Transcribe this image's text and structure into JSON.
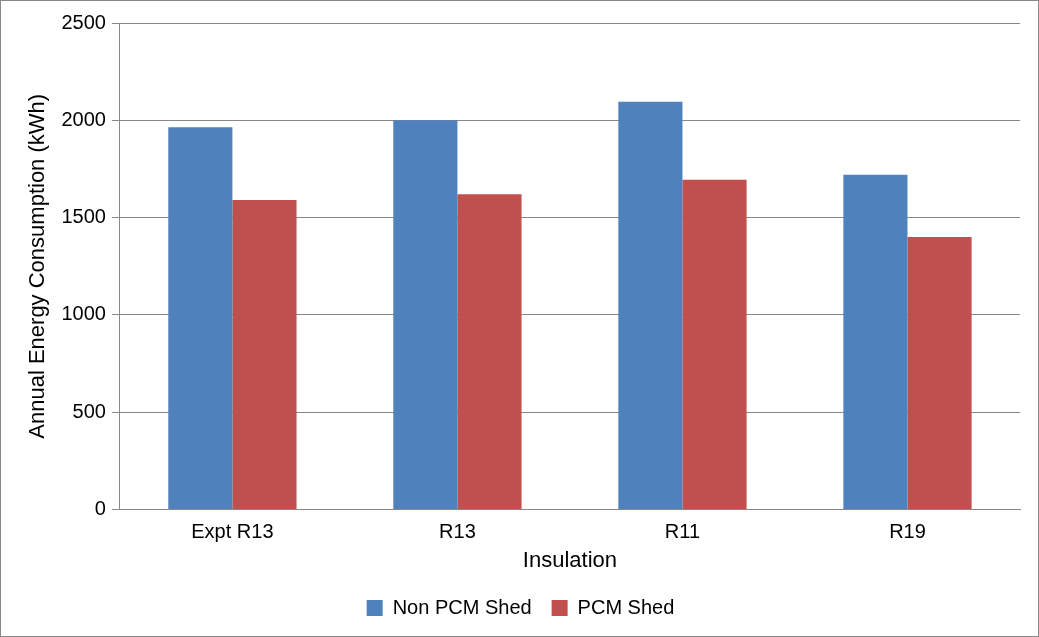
{
  "chart_data": {
    "type": "bar",
    "xlabel": "Insulation",
    "ylabel": "Annual Energy Consumption (kWh)",
    "categories": [
      "Expt R13",
      "R13",
      "R11",
      "R19"
    ],
    "series": [
      {
        "name": "Non PCM Shed",
        "color": "#4f81bd",
        "values": [
          1965,
          2000,
          2095,
          1720
        ]
      },
      {
        "name": "PCM Shed",
        "color": "#c0504d",
        "values": [
          1590,
          1620,
          1695,
          1400
        ]
      }
    ],
    "ylim": [
      0,
      2500
    ],
    "yticks": [
      0,
      500,
      1000,
      1500,
      2000,
      2500
    ],
    "grid": "y",
    "legend": "bottom"
  }
}
